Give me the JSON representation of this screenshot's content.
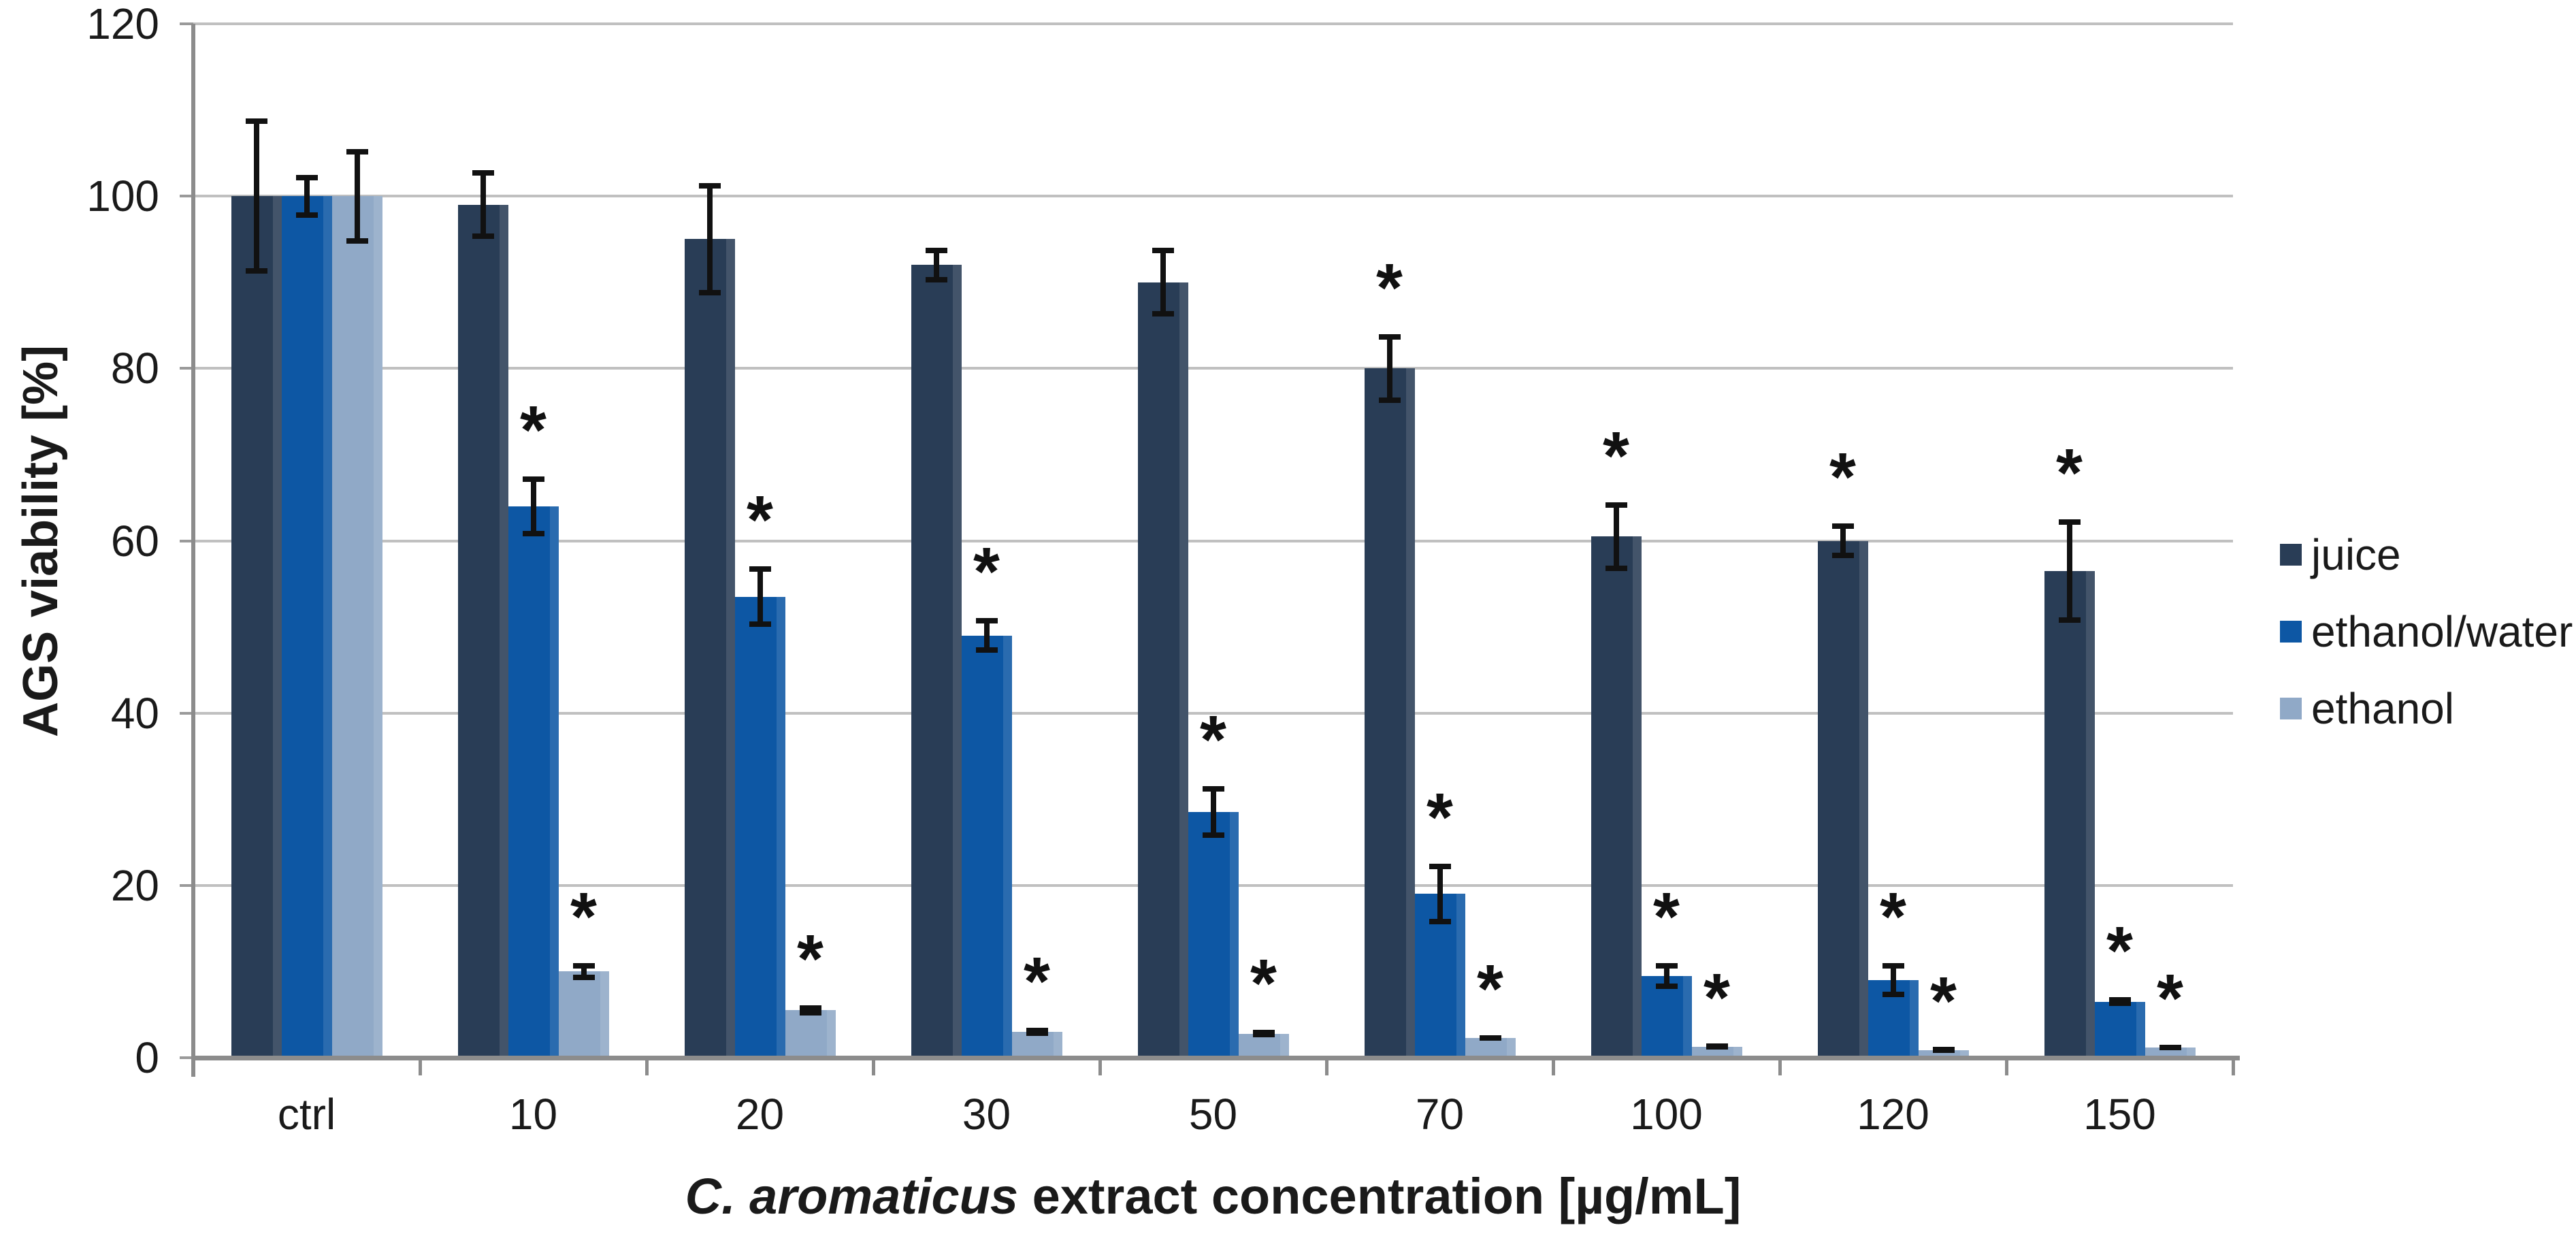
{
  "figure": {
    "background": "#ffffff",
    "axis_color": "#8c8c8c",
    "gridline_color": "#c0c0c0",
    "text_color": "#1a1a1a"
  },
  "chart_data": {
    "type": "bar",
    "title": "",
    "ylabel": "AGS viability [%]",
    "xlabel": "C. aromaticus extract concentration [µg/mL]",
    "xlabel_italic": "C. aromaticus",
    "xlabel_rest": " extract concentration [µg/mL]",
    "categories": [
      "ctrl",
      "10",
      "20",
      "30",
      "50",
      "70",
      "100",
      "120",
      "150"
    ],
    "ylim": [
      0,
      120
    ],
    "yticks": [
      0,
      20,
      40,
      60,
      80,
      100,
      120
    ],
    "grid": true,
    "legend_position": "right",
    "significance_symbol": "*",
    "error_bar_color": "#111111",
    "series": [
      {
        "name": "juice",
        "color": "#293d56",
        "values": [
          100,
          99,
          95,
          92,
          90,
          80,
          60.5,
          60,
          56.5
        ],
        "errors": [
          9,
          4,
          6.5,
          2,
          4,
          4,
          4,
          2,
          6
        ],
        "significant": [
          false,
          false,
          false,
          false,
          false,
          true,
          true,
          true,
          true
        ]
      },
      {
        "name": "ethanol/water",
        "color": "#0d57a4",
        "values": [
          100,
          64,
          53.5,
          49,
          28.5,
          19,
          9.5,
          9,
          6.5
        ],
        "errors": [
          2.5,
          3.5,
          3.5,
          2,
          3,
          3.5,
          1.5,
          2,
          0.5
        ],
        "significant": [
          false,
          true,
          true,
          true,
          true,
          true,
          true,
          true,
          true
        ]
      },
      {
        "name": "ethanol",
        "color": "#90a9c7",
        "values": [
          100,
          10,
          5.5,
          3,
          2.8,
          2.3,
          1.3,
          0.9,
          1.2
        ],
        "errors": [
          5.5,
          1,
          0.6,
          0.5,
          0.4,
          0.3,
          0.3,
          0.3,
          0.3
        ],
        "significant": [
          false,
          true,
          true,
          true,
          true,
          true,
          true,
          true,
          true
        ]
      }
    ]
  }
}
